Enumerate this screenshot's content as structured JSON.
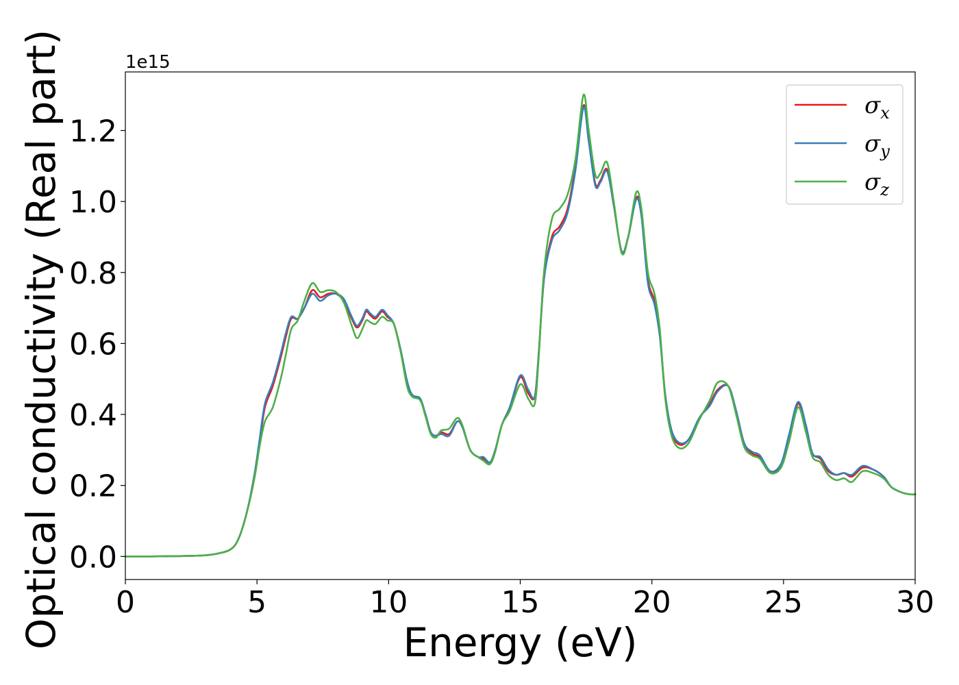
{
  "chart_data": {
    "type": "line",
    "xlabel": "Energy (eV)",
    "ylabel": "Optical conductivity (Real part)",
    "y_offset_text": "1e15",
    "xlim": [
      0,
      30
    ],
    "ylim": [
      -0.065,
      1.365
    ],
    "x_ticks": [
      0,
      5,
      10,
      15,
      20,
      25,
      30
    ],
    "y_ticks": [
      0.0,
      0.2,
      0.4,
      0.6,
      0.8,
      1.0,
      1.2
    ],
    "x_tick_labels": [
      "0",
      "5",
      "10",
      "15",
      "20",
      "25",
      "30"
    ],
    "y_tick_labels": [
      "0.0",
      "0.2",
      "0.4",
      "0.6",
      "0.8",
      "1.0",
      "1.2"
    ],
    "grid": false,
    "legend_position": "top-right",
    "series": [
      {
        "name": "σx",
        "symbol": "σ",
        "subscript": "x",
        "color": "#e41a1c",
        "points": [
          [
            0,
            0.0
          ],
          [
            1,
            0.0
          ],
          [
            2,
            0.001
          ],
          [
            3,
            0.003
          ],
          [
            3.5,
            0.008
          ],
          [
            4,
            0.02
          ],
          [
            4.3,
            0.05
          ],
          [
            4.6,
            0.12
          ],
          [
            4.9,
            0.22
          ],
          [
            5.1,
            0.32
          ],
          [
            5.3,
            0.42
          ],
          [
            5.6,
            0.48
          ],
          [
            5.9,
            0.56
          ],
          [
            6.1,
            0.62
          ],
          [
            6.3,
            0.67
          ],
          [
            6.55,
            0.67
          ],
          [
            6.8,
            0.7
          ],
          [
            7.1,
            0.75
          ],
          [
            7.4,
            0.73
          ],
          [
            7.7,
            0.74
          ],
          [
            8.0,
            0.74
          ],
          [
            8.3,
            0.72
          ],
          [
            8.6,
            0.67
          ],
          [
            8.8,
            0.645
          ],
          [
            9.0,
            0.665
          ],
          [
            9.15,
            0.69
          ],
          [
            9.3,
            0.68
          ],
          [
            9.5,
            0.67
          ],
          [
            9.75,
            0.69
          ],
          [
            9.95,
            0.675
          ],
          [
            10.2,
            0.655
          ],
          [
            10.45,
            0.58
          ],
          [
            10.7,
            0.49
          ],
          [
            10.9,
            0.455
          ],
          [
            11.2,
            0.44
          ],
          [
            11.4,
            0.4
          ],
          [
            11.6,
            0.35
          ],
          [
            11.8,
            0.34
          ],
          [
            12.0,
            0.35
          ],
          [
            12.3,
            0.345
          ],
          [
            12.6,
            0.38
          ],
          [
            12.8,
            0.365
          ],
          [
            13.1,
            0.3
          ],
          [
            13.4,
            0.28
          ],
          [
            13.6,
            0.275
          ],
          [
            13.85,
            0.265
          ],
          [
            14.05,
            0.3
          ],
          [
            14.3,
            0.37
          ],
          [
            14.6,
            0.42
          ],
          [
            15.0,
            0.505
          ],
          [
            15.3,
            0.46
          ],
          [
            15.55,
            0.45
          ],
          [
            15.7,
            0.57
          ],
          [
            15.9,
            0.78
          ],
          [
            16.2,
            0.9
          ],
          [
            16.5,
            0.93
          ],
          [
            16.8,
            0.98
          ],
          [
            17.1,
            1.1
          ],
          [
            17.4,
            1.27
          ],
          [
            17.6,
            1.18
          ],
          [
            17.85,
            1.05
          ],
          [
            18.05,
            1.06
          ],
          [
            18.3,
            1.09
          ],
          [
            18.55,
            0.99
          ],
          [
            18.85,
            0.86
          ],
          [
            19.1,
            0.9
          ],
          [
            19.4,
            1.01
          ],
          [
            19.6,
            0.97
          ],
          [
            19.85,
            0.78
          ],
          [
            20.1,
            0.72
          ],
          [
            20.3,
            0.63
          ],
          [
            20.5,
            0.46
          ],
          [
            20.75,
            0.35
          ],
          [
            21.05,
            0.315
          ],
          [
            21.4,
            0.33
          ],
          [
            21.8,
            0.39
          ],
          [
            22.2,
            0.43
          ],
          [
            22.5,
            0.47
          ],
          [
            22.9,
            0.48
          ],
          [
            23.2,
            0.41
          ],
          [
            23.5,
            0.32
          ],
          [
            23.8,
            0.29
          ],
          [
            24.1,
            0.28
          ],
          [
            24.5,
            0.24
          ],
          [
            24.9,
            0.255
          ],
          [
            25.2,
            0.33
          ],
          [
            25.55,
            0.43
          ],
          [
            25.85,
            0.36
          ],
          [
            26.1,
            0.29
          ],
          [
            26.4,
            0.275
          ],
          [
            26.7,
            0.24
          ],
          [
            27.0,
            0.23
          ],
          [
            27.3,
            0.235
          ],
          [
            27.6,
            0.225
          ],
          [
            28.0,
            0.25
          ],
          [
            28.4,
            0.245
          ],
          [
            28.8,
            0.225
          ],
          [
            29.1,
            0.195
          ],
          [
            29.5,
            0.18
          ],
          [
            29.8,
            0.175
          ],
          [
            30,
            0.175
          ]
        ]
      },
      {
        "name": "σy",
        "symbol": "σ",
        "subscript": "y",
        "color": "#377eb8",
        "points": [
          [
            0,
            0.0
          ],
          [
            1,
            0.0
          ],
          [
            2,
            0.001
          ],
          [
            3,
            0.003
          ],
          [
            3.5,
            0.008
          ],
          [
            4,
            0.02
          ],
          [
            4.3,
            0.05
          ],
          [
            4.6,
            0.12
          ],
          [
            4.9,
            0.23
          ],
          [
            5.1,
            0.33
          ],
          [
            5.3,
            0.43
          ],
          [
            5.6,
            0.49
          ],
          [
            5.9,
            0.57
          ],
          [
            6.1,
            0.63
          ],
          [
            6.3,
            0.675
          ],
          [
            6.55,
            0.67
          ],
          [
            6.8,
            0.7
          ],
          [
            7.1,
            0.74
          ],
          [
            7.4,
            0.72
          ],
          [
            7.7,
            0.735
          ],
          [
            8.0,
            0.74
          ],
          [
            8.3,
            0.725
          ],
          [
            8.6,
            0.675
          ],
          [
            8.8,
            0.65
          ],
          [
            9.0,
            0.67
          ],
          [
            9.15,
            0.695
          ],
          [
            9.3,
            0.685
          ],
          [
            9.5,
            0.675
          ],
          [
            9.75,
            0.695
          ],
          [
            9.95,
            0.68
          ],
          [
            10.2,
            0.655
          ],
          [
            10.45,
            0.585
          ],
          [
            10.7,
            0.495
          ],
          [
            10.9,
            0.455
          ],
          [
            11.2,
            0.445
          ],
          [
            11.4,
            0.4
          ],
          [
            11.6,
            0.35
          ],
          [
            11.8,
            0.34
          ],
          [
            12.0,
            0.345
          ],
          [
            12.3,
            0.34
          ],
          [
            12.6,
            0.38
          ],
          [
            12.8,
            0.365
          ],
          [
            13.1,
            0.3
          ],
          [
            13.4,
            0.28
          ],
          [
            13.6,
            0.28
          ],
          [
            13.85,
            0.265
          ],
          [
            14.05,
            0.3
          ],
          [
            14.3,
            0.37
          ],
          [
            14.6,
            0.42
          ],
          [
            15.0,
            0.51
          ],
          [
            15.3,
            0.47
          ],
          [
            15.55,
            0.45
          ],
          [
            15.7,
            0.57
          ],
          [
            15.9,
            0.78
          ],
          [
            16.2,
            0.89
          ],
          [
            16.5,
            0.92
          ],
          [
            16.8,
            0.97
          ],
          [
            17.1,
            1.09
          ],
          [
            17.4,
            1.265
          ],
          [
            17.6,
            1.17
          ],
          [
            17.85,
            1.045
          ],
          [
            18.05,
            1.055
          ],
          [
            18.3,
            1.085
          ],
          [
            18.55,
            0.99
          ],
          [
            18.85,
            0.86
          ],
          [
            19.1,
            0.9
          ],
          [
            19.4,
            1.005
          ],
          [
            19.6,
            0.96
          ],
          [
            19.85,
            0.77
          ],
          [
            20.1,
            0.71
          ],
          [
            20.3,
            0.62
          ],
          [
            20.5,
            0.46
          ],
          [
            20.75,
            0.355
          ],
          [
            21.05,
            0.32
          ],
          [
            21.4,
            0.33
          ],
          [
            21.8,
            0.39
          ],
          [
            22.2,
            0.425
          ],
          [
            22.5,
            0.465
          ],
          [
            22.9,
            0.48
          ],
          [
            23.2,
            0.41
          ],
          [
            23.5,
            0.32
          ],
          [
            23.8,
            0.295
          ],
          [
            24.1,
            0.285
          ],
          [
            24.5,
            0.24
          ],
          [
            24.9,
            0.26
          ],
          [
            25.2,
            0.34
          ],
          [
            25.55,
            0.435
          ],
          [
            25.85,
            0.37
          ],
          [
            26.1,
            0.29
          ],
          [
            26.4,
            0.28
          ],
          [
            26.7,
            0.245
          ],
          [
            27.0,
            0.23
          ],
          [
            27.3,
            0.235
          ],
          [
            27.6,
            0.23
          ],
          [
            28.0,
            0.255
          ],
          [
            28.4,
            0.245
          ],
          [
            28.8,
            0.225
          ],
          [
            29.1,
            0.195
          ],
          [
            29.5,
            0.18
          ],
          [
            29.8,
            0.175
          ],
          [
            30,
            0.175
          ]
        ]
      },
      {
        "name": "σz",
        "symbol": "σ",
        "subscript": "z",
        "color": "#4daf4a",
        "points": [
          [
            0,
            0.0
          ],
          [
            1,
            0.0
          ],
          [
            2,
            0.001
          ],
          [
            3,
            0.003
          ],
          [
            3.5,
            0.008
          ],
          [
            4,
            0.02
          ],
          [
            4.3,
            0.05
          ],
          [
            4.6,
            0.12
          ],
          [
            4.9,
            0.22
          ],
          [
            5.1,
            0.31
          ],
          [
            5.3,
            0.38
          ],
          [
            5.6,
            0.42
          ],
          [
            5.9,
            0.5
          ],
          [
            6.1,
            0.57
          ],
          [
            6.3,
            0.64
          ],
          [
            6.55,
            0.665
          ],
          [
            6.8,
            0.72
          ],
          [
            7.1,
            0.77
          ],
          [
            7.4,
            0.745
          ],
          [
            7.7,
            0.75
          ],
          [
            8.0,
            0.745
          ],
          [
            8.3,
            0.715
          ],
          [
            8.6,
            0.65
          ],
          [
            8.8,
            0.615
          ],
          [
            9.0,
            0.64
          ],
          [
            9.15,
            0.665
          ],
          [
            9.3,
            0.66
          ],
          [
            9.5,
            0.655
          ],
          [
            9.75,
            0.675
          ],
          [
            9.95,
            0.665
          ],
          [
            10.2,
            0.655
          ],
          [
            10.45,
            0.58
          ],
          [
            10.7,
            0.48
          ],
          [
            10.9,
            0.45
          ],
          [
            11.2,
            0.44
          ],
          [
            11.4,
            0.395
          ],
          [
            11.6,
            0.345
          ],
          [
            11.8,
            0.335
          ],
          [
            12.0,
            0.355
          ],
          [
            12.3,
            0.36
          ],
          [
            12.6,
            0.39
          ],
          [
            12.8,
            0.37
          ],
          [
            13.1,
            0.3
          ],
          [
            13.4,
            0.28
          ],
          [
            13.6,
            0.27
          ],
          [
            13.85,
            0.26
          ],
          [
            14.05,
            0.295
          ],
          [
            14.3,
            0.37
          ],
          [
            14.6,
            0.41
          ],
          [
            15.0,
            0.485
          ],
          [
            15.3,
            0.445
          ],
          [
            15.55,
            0.43
          ],
          [
            15.7,
            0.56
          ],
          [
            15.9,
            0.8
          ],
          [
            16.2,
            0.95
          ],
          [
            16.5,
            0.98
          ],
          [
            16.8,
            1.02
          ],
          [
            17.1,
            1.12
          ],
          [
            17.4,
            1.3
          ],
          [
            17.6,
            1.2
          ],
          [
            17.85,
            1.075
          ],
          [
            18.05,
            1.08
          ],
          [
            18.3,
            1.11
          ],
          [
            18.55,
            1.0
          ],
          [
            18.85,
            0.855
          ],
          [
            19.1,
            0.9
          ],
          [
            19.4,
            1.025
          ],
          [
            19.6,
            0.98
          ],
          [
            19.85,
            0.8
          ],
          [
            20.1,
            0.74
          ],
          [
            20.3,
            0.64
          ],
          [
            20.5,
            0.45
          ],
          [
            20.75,
            0.34
          ],
          [
            21.05,
            0.305
          ],
          [
            21.4,
            0.32
          ],
          [
            21.8,
            0.385
          ],
          [
            22.2,
            0.44
          ],
          [
            22.5,
            0.49
          ],
          [
            22.9,
            0.48
          ],
          [
            23.2,
            0.4
          ],
          [
            23.5,
            0.31
          ],
          [
            23.8,
            0.285
          ],
          [
            24.1,
            0.275
          ],
          [
            24.5,
            0.235
          ],
          [
            24.9,
            0.25
          ],
          [
            25.2,
            0.32
          ],
          [
            25.55,
            0.42
          ],
          [
            25.85,
            0.35
          ],
          [
            26.1,
            0.28
          ],
          [
            26.4,
            0.265
          ],
          [
            26.7,
            0.23
          ],
          [
            27.0,
            0.215
          ],
          [
            27.3,
            0.22
          ],
          [
            27.6,
            0.21
          ],
          [
            28.0,
            0.24
          ],
          [
            28.4,
            0.235
          ],
          [
            28.8,
            0.22
          ],
          [
            29.1,
            0.195
          ],
          [
            29.5,
            0.18
          ],
          [
            29.8,
            0.175
          ],
          [
            30,
            0.175
          ]
        ]
      }
    ]
  }
}
